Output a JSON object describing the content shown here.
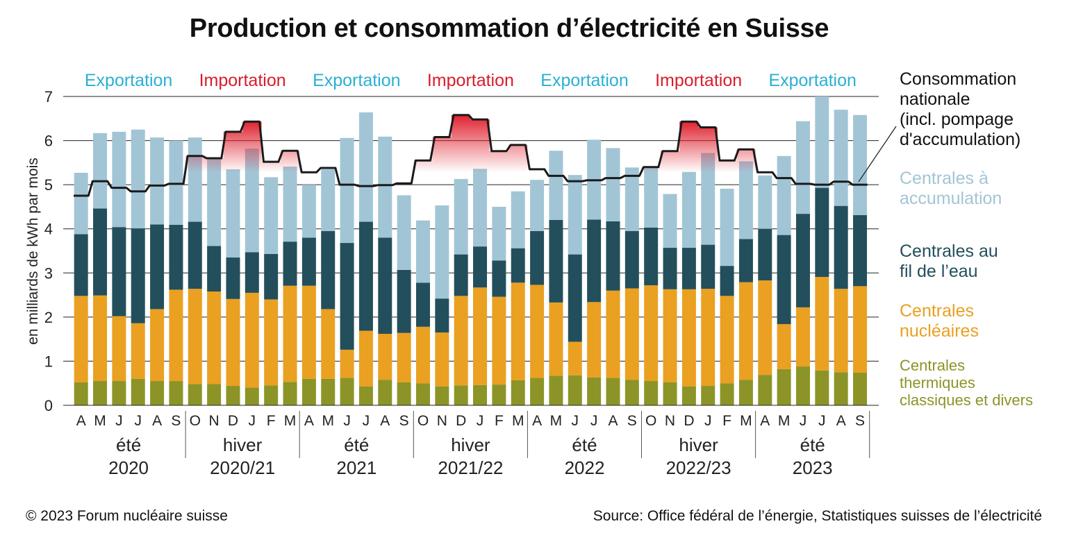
{
  "header": {
    "title": "Production et consommation d’électricité en Suisse"
  },
  "footer": {
    "copyright": "© 2023 Forum nucléaire suisse",
    "source": "Source: Office fédéral de l’énergie, Statistiques suisses de l’électricité"
  },
  "legend": {
    "consumption": [
      "Consommation",
      "nationale",
      "(incl. pompage",
      "d'accumulation)"
    ],
    "storage": [
      "Centrales à",
      "accumulation"
    ],
    "river": [
      "Centrales au",
      "fil de l’eau"
    ],
    "nuclear": [
      "Centrales",
      "nucléaires"
    ],
    "thermal": [
      "Centrales",
      "thermiques",
      "classiques et divers"
    ]
  },
  "colors": {
    "thermal": "#8c9427",
    "nuclear": "#eaa021",
    "river": "#234f5c",
    "storage": "#a2c5d6",
    "consumption": "#1a1a1a",
    "export": "#2ab0d4",
    "import": "#d81d2c",
    "import_fill": "#e0252f"
  },
  "chart_data": {
    "type": "bar",
    "stacked": true,
    "title": "Production et consommation d’électricité en Suisse",
    "ylabel": "en milliards de kWh par mois",
    "ylim": [
      0,
      7
    ],
    "yticks": [
      0,
      1,
      2,
      3,
      4,
      5,
      6,
      7
    ],
    "grid": true,
    "categories": [
      "A",
      "M",
      "J",
      "J",
      "A",
      "S",
      "O",
      "N",
      "D",
      "J",
      "F",
      "M",
      "A",
      "M",
      "J",
      "J",
      "A",
      "S",
      "O",
      "N",
      "D",
      "J",
      "F",
      "M",
      "A",
      "M",
      "J",
      "J",
      "A",
      "S",
      "O",
      "N",
      "D",
      "J",
      "F",
      "M",
      "A",
      "M",
      "J",
      "J",
      "A",
      "S"
    ],
    "periods": [
      {
        "season": "été",
        "year": "2020",
        "count": 6
      },
      {
        "season": "hiver",
        "year": "2020/21",
        "count": 6
      },
      {
        "season": "été",
        "year": "2021",
        "count": 6
      },
      {
        "season": "hiver",
        "year": "2021/22",
        "count": 6
      },
      {
        "season": "été",
        "year": "2022",
        "count": 6
      },
      {
        "season": "hiver",
        "year": "2022/23",
        "count": 6
      },
      {
        "season": "été",
        "year": "2023",
        "count": 6
      }
    ],
    "trade_labels": [
      {
        "text": "Exportation",
        "kind": "export"
      },
      {
        "text": "Importation",
        "kind": "import"
      },
      {
        "text": "Exportation",
        "kind": "export"
      },
      {
        "text": "Importation",
        "kind": "import"
      },
      {
        "text": "Exportation",
        "kind": "export"
      },
      {
        "text": "Importation",
        "kind": "import"
      },
      {
        "text": "Exportation",
        "kind": "export"
      }
    ],
    "series": [
      {
        "name": "Centrales thermiques classiques et divers",
        "key": "thermal",
        "values": [
          0.52,
          0.55,
          0.55,
          0.6,
          0.55,
          0.55,
          0.48,
          0.48,
          0.44,
          0.4,
          0.45,
          0.53,
          0.6,
          0.6,
          0.62,
          0.43,
          0.58,
          0.52,
          0.5,
          0.43,
          0.45,
          0.46,
          0.47,
          0.57,
          0.62,
          0.67,
          0.68,
          0.63,
          0.62,
          0.58,
          0.55,
          0.52,
          0.43,
          0.44,
          0.5,
          0.58,
          0.69,
          0.82,
          0.88,
          0.79,
          0.75,
          0.74
        ]
      },
      {
        "name": "Centrales nucléaires",
        "key": "nuclear",
        "values": [
          1.96,
          1.94,
          1.47,
          1.26,
          1.63,
          2.07,
          2.16,
          2.1,
          1.97,
          2.15,
          1.95,
          2.18,
          2.11,
          1.58,
          0.64,
          1.26,
          1.04,
          1.12,
          1.28,
          1.22,
          2.03,
          2.21,
          1.99,
          2.21,
          2.11,
          1.66,
          0.76,
          1.71,
          1.98,
          2.07,
          2.17,
          2.11,
          2.2,
          2.2,
          1.98,
          2.21,
          2.14,
          1.02,
          1.34,
          2.12,
          1.89,
          1.96
        ]
      },
      {
        "name": "Centrales au fil de l’eau",
        "key": "river",
        "values": [
          1.4,
          1.97,
          2.02,
          2.15,
          1.92,
          1.47,
          1.52,
          1.03,
          0.94,
          0.92,
          1.03,
          1.0,
          1.09,
          1.77,
          2.42,
          2.47,
          2.18,
          1.43,
          1.0,
          0.77,
          0.94,
          0.93,
          0.82,
          0.78,
          1.22,
          1.87,
          1.98,
          1.87,
          1.57,
          1.3,
          1.31,
          0.94,
          0.94,
          1.0,
          0.68,
          0.98,
          1.17,
          2.02,
          2.12,
          2.02,
          1.88,
          1.61
        ]
      },
      {
        "name": "Centrales à accumulation",
        "key": "storage",
        "values": [
          1.39,
          1.71,
          2.16,
          2.24,
          1.97,
          1.91,
          1.91,
          1.97,
          2.0,
          2.35,
          1.74,
          1.7,
          1.2,
          1.4,
          2.38,
          2.48,
          2.29,
          1.69,
          1.41,
          2.11,
          1.71,
          1.76,
          1.22,
          1.29,
          1.16,
          1.57,
          1.8,
          1.81,
          1.66,
          1.44,
          1.36,
          1.22,
          1.72,
          2.08,
          1.75,
          1.76,
          1.21,
          1.79,
          2.1,
          2.07,
          2.18,
          2.27
        ]
      },
      {
        "name": "Consommation nationale (incl. pompage d'accumulation)",
        "key": "consumption",
        "type": "line",
        "values": [
          4.75,
          5.08,
          4.93,
          4.85,
          4.98,
          5.02,
          5.65,
          5.6,
          6.2,
          6.43,
          5.52,
          5.77,
          5.28,
          5.38,
          5.0,
          4.97,
          4.99,
          5.03,
          5.55,
          6.08,
          6.58,
          6.48,
          5.76,
          5.9,
          5.35,
          5.2,
          5.08,
          5.1,
          5.15,
          5.2,
          5.4,
          5.76,
          6.43,
          6.3,
          5.55,
          5.8,
          5.28,
          5.15,
          5.02,
          5.0,
          5.07,
          5.0
        ]
      }
    ]
  }
}
